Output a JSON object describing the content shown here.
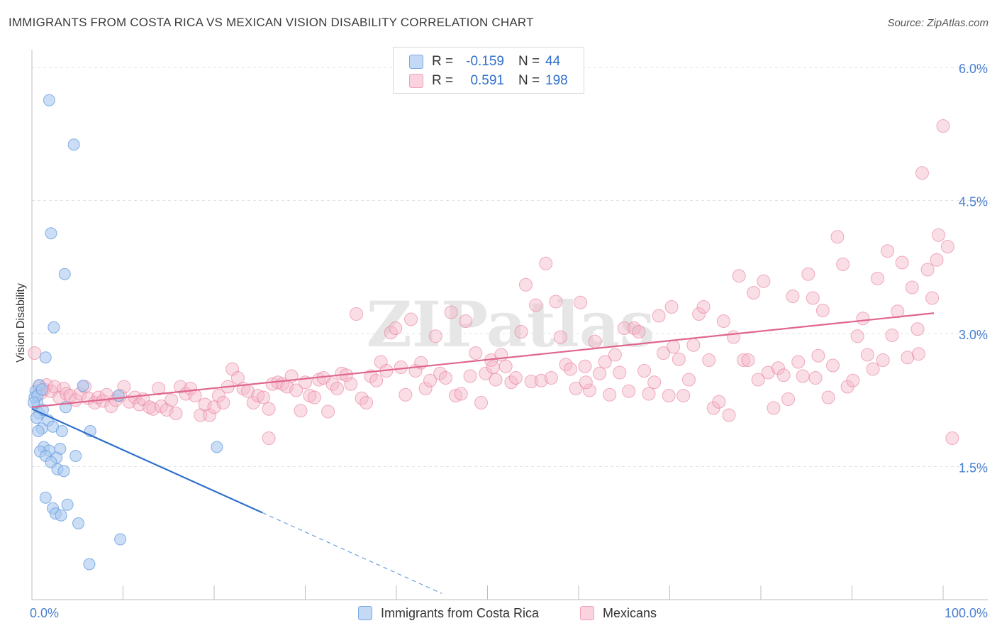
{
  "title": "IMMIGRANTS FROM COSTA RICA VS MEXICAN VISION DISABILITY CORRELATION CHART",
  "source": "Source: ZipAtlas.com",
  "watermark": "ZIPatlas",
  "legend": {
    "rows": [
      {
        "r_label": "R =",
        "r_value": "-0.159",
        "n_label": "N =",
        "n_value": "44",
        "color": "#a8c8f0"
      },
      {
        "r_label": "R =",
        "r_value": "0.591",
        "n_label": "N =",
        "n_value": "198",
        "color": "#f5b5c8"
      }
    ]
  },
  "bottom_legend": {
    "series1": "Immigrants from Costa Rica",
    "series2": "Mexicans"
  },
  "chart_data": {
    "type": "scatter",
    "title": "IMMIGRANTS FROM COSTA RICA VS MEXICAN VISION DISABILITY CORRELATION CHART",
    "xlabel": "",
    "ylabel": "Vision Disability",
    "xlim": [
      0,
      100
    ],
    "ylim": [
      0,
      6.2
    ],
    "x_tick_labels": [
      "0.0%",
      "100.0%"
    ],
    "y_ticks": [
      {
        "value": 1.5,
        "label": "1.5%"
      },
      {
        "value": 3.0,
        "label": "3.0%"
      },
      {
        "value": 4.5,
        "label": "4.5%"
      },
      {
        "value": 6.0,
        "label": "6.0%"
      }
    ],
    "series": [
      {
        "name": "Immigrants from Costa Rica",
        "color": "#6a9fe0",
        "fill": "#a8c8f0",
        "trend": {
          "x0": 0,
          "y0": 2.15,
          "x1": 25.3,
          "y1": 0.98,
          "dash_to_x": 45.0
        },
        "points": [
          [
            1.9,
            5.63
          ],
          [
            4.6,
            5.13
          ],
          [
            2.1,
            4.13
          ],
          [
            3.6,
            3.67
          ],
          [
            2.4,
            3.07
          ],
          [
            1.5,
            2.73
          ],
          [
            5.6,
            2.41
          ],
          [
            0.4,
            2.35
          ],
          [
            0.6,
            2.22
          ],
          [
            0.8,
            2.1
          ],
          [
            1.2,
            2.14
          ],
          [
            3.7,
            2.17
          ],
          [
            0.5,
            2.05
          ],
          [
            1.1,
            1.93
          ],
          [
            1.8,
            2.02
          ],
          [
            2.3,
            1.95
          ],
          [
            3.3,
            1.9
          ],
          [
            6.4,
            1.9
          ],
          [
            0.7,
            1.9
          ],
          [
            1.3,
            1.72
          ],
          [
            1.9,
            1.68
          ],
          [
            3.1,
            1.7
          ],
          [
            0.9,
            1.67
          ],
          [
            1.5,
            1.62
          ],
          [
            2.7,
            1.6
          ],
          [
            4.8,
            1.62
          ],
          [
            2.1,
            1.55
          ],
          [
            2.8,
            1.47
          ],
          [
            3.5,
            1.45
          ],
          [
            1.5,
            1.15
          ],
          [
            2.3,
            1.03
          ],
          [
            3.9,
            1.07
          ],
          [
            2.6,
            0.97
          ],
          [
            3.2,
            0.95
          ],
          [
            5.1,
            0.86
          ],
          [
            9.7,
            0.68
          ],
          [
            6.3,
            0.4
          ],
          [
            0.3,
            2.28
          ],
          [
            0.6,
            2.3
          ],
          [
            0.2,
            2.22
          ],
          [
            9.5,
            2.3
          ],
          [
            20.3,
            1.72
          ],
          [
            0.8,
            2.42
          ],
          [
            1.1,
            2.37
          ]
        ]
      },
      {
        "name": "Mexicans",
        "color": "#e8799a",
        "fill": "#f5b5c8",
        "trend": {
          "x0": 0,
          "y0": 2.17,
          "x1": 99.0,
          "y1": 3.23
        },
        "points": [
          [
            0.3,
            2.78
          ],
          [
            0.8,
            2.4
          ],
          [
            1.0,
            2.33
          ],
          [
            1.3,
            2.37
          ],
          [
            1.6,
            2.42
          ],
          [
            2.1,
            2.35
          ],
          [
            2.5,
            2.4
          ],
          [
            3.0,
            2.28
          ],
          [
            3.5,
            2.38
          ],
          [
            3.8,
            2.32
          ],
          [
            4.2,
            2.3
          ],
          [
            4.8,
            2.25
          ],
          [
            5.3,
            2.32
          ],
          [
            5.8,
            2.4
          ],
          [
            6.2,
            2.27
          ],
          [
            6.9,
            2.22
          ],
          [
            7.3,
            2.28
          ],
          [
            7.8,
            2.24
          ],
          [
            8.2,
            2.31
          ],
          [
            8.7,
            2.18
          ],
          [
            9.2,
            2.25
          ],
          [
            9.7,
            2.3
          ],
          [
            10.1,
            2.4
          ],
          [
            10.7,
            2.23
          ],
          [
            11.3,
            2.28
          ],
          [
            11.8,
            2.2
          ],
          [
            12.2,
            2.26
          ],
          [
            12.9,
            2.17
          ],
          [
            13.3,
            2.15
          ],
          [
            13.9,
            2.38
          ],
          [
            14.2,
            2.18
          ],
          [
            14.8,
            2.14
          ],
          [
            15.3,
            2.25
          ],
          [
            15.8,
            2.1
          ],
          [
            16.3,
            2.4
          ],
          [
            16.9,
            2.32
          ],
          [
            17.4,
            2.38
          ],
          [
            17.9,
            2.3
          ],
          [
            18.5,
            2.08
          ],
          [
            19.0,
            2.2
          ],
          [
            19.5,
            2.08
          ],
          [
            20.0,
            2.17
          ],
          [
            20.5,
            2.3
          ],
          [
            21.0,
            2.22
          ],
          [
            21.5,
            2.4
          ],
          [
            22.0,
            2.6
          ],
          [
            22.6,
            2.5
          ],
          [
            23.2,
            2.38
          ],
          [
            23.7,
            2.35
          ],
          [
            24.3,
            2.22
          ],
          [
            24.8,
            2.3
          ],
          [
            25.4,
            2.28
          ],
          [
            26.0,
            2.15
          ],
          [
            26.4,
            2.43
          ],
          [
            27.0,
            2.45
          ],
          [
            27.5,
            2.43
          ],
          [
            28.0,
            2.4
          ],
          [
            28.5,
            2.52
          ],
          [
            29.0,
            2.36
          ],
          [
            29.5,
            2.13
          ],
          [
            30.0,
            2.45
          ],
          [
            30.5,
            2.3
          ],
          [
            31.0,
            2.28
          ],
          [
            31.5,
            2.48
          ],
          [
            32.0,
            2.5
          ],
          [
            32.5,
            2.12
          ],
          [
            33.0,
            2.43
          ],
          [
            33.5,
            2.38
          ],
          [
            34.0,
            2.55
          ],
          [
            34.5,
            2.53
          ],
          [
            35.0,
            2.43
          ],
          [
            35.6,
            3.22
          ],
          [
            36.2,
            2.27
          ],
          [
            36.7,
            2.22
          ],
          [
            37.2,
            2.52
          ],
          [
            37.8,
            2.47
          ],
          [
            38.3,
            2.68
          ],
          [
            38.9,
            2.58
          ],
          [
            39.4,
            3.01
          ],
          [
            39.9,
            3.06
          ],
          [
            40.5,
            2.62
          ],
          [
            41.0,
            2.31
          ],
          [
            41.6,
            3.16
          ],
          [
            42.1,
            2.58
          ],
          [
            42.7,
            2.67
          ],
          [
            43.2,
            2.38
          ],
          [
            43.7,
            2.47
          ],
          [
            44.3,
            2.97
          ],
          [
            44.8,
            2.55
          ],
          [
            45.4,
            2.5
          ],
          [
            46.0,
            3.24
          ],
          [
            46.5,
            2.3
          ],
          [
            47.1,
            2.32
          ],
          [
            47.6,
            3.14
          ],
          [
            48.1,
            2.52
          ],
          [
            48.7,
            2.78
          ],
          [
            49.3,
            2.22
          ],
          [
            49.8,
            2.55
          ],
          [
            50.4,
            2.7
          ],
          [
            50.9,
            2.48
          ],
          [
            51.5,
            2.76
          ],
          [
            52.0,
            2.63
          ],
          [
            52.6,
            2.45
          ],
          [
            53.1,
            2.5
          ],
          [
            53.7,
            3.02
          ],
          [
            54.2,
            3.55
          ],
          [
            54.8,
            2.46
          ],
          [
            55.3,
            3.32
          ],
          [
            55.9,
            2.47
          ],
          [
            56.4,
            3.79
          ],
          [
            57.0,
            2.5
          ],
          [
            57.5,
            3.36
          ],
          [
            58.0,
            2.96
          ],
          [
            58.6,
            2.65
          ],
          [
            59.1,
            2.6
          ],
          [
            59.7,
            2.38
          ],
          [
            60.2,
            3.35
          ],
          [
            60.7,
            2.63
          ],
          [
            61.2,
            2.36
          ],
          [
            61.8,
            2.91
          ],
          [
            62.3,
            2.55
          ],
          [
            62.9,
            2.68
          ],
          [
            63.4,
            2.31
          ],
          [
            64.0,
            2.76
          ],
          [
            64.5,
            2.56
          ],
          [
            65.0,
            3.06
          ],
          [
            65.5,
            2.35
          ],
          [
            66.1,
            3.06
          ],
          [
            66.6,
            3.02
          ],
          [
            67.2,
            2.58
          ],
          [
            67.7,
            2.32
          ],
          [
            68.3,
            2.45
          ],
          [
            68.8,
            3.2
          ],
          [
            69.3,
            2.78
          ],
          [
            69.9,
            2.3
          ],
          [
            70.4,
            2.85
          ],
          [
            71.0,
            2.71
          ],
          [
            71.5,
            2.3
          ],
          [
            72.1,
            2.48
          ],
          [
            72.6,
            2.87
          ],
          [
            73.2,
            3.22
          ],
          [
            73.7,
            3.3
          ],
          [
            74.3,
            2.7
          ],
          [
            74.8,
            2.16
          ],
          [
            75.4,
            2.23
          ],
          [
            75.9,
            3.14
          ],
          [
            76.5,
            2.08
          ],
          [
            77.0,
            2.96
          ],
          [
            77.6,
            3.65
          ],
          [
            78.1,
            2.7
          ],
          [
            78.6,
            2.7
          ],
          [
            79.2,
            3.46
          ],
          [
            79.7,
            2.48
          ],
          [
            80.3,
            3.59
          ],
          [
            80.8,
            2.56
          ],
          [
            81.4,
            2.16
          ],
          [
            81.9,
            2.61
          ],
          [
            82.5,
            2.53
          ],
          [
            83.0,
            2.26
          ],
          [
            83.5,
            3.42
          ],
          [
            84.1,
            2.68
          ],
          [
            84.6,
            2.52
          ],
          [
            85.2,
            3.67
          ],
          [
            85.7,
            3.4
          ],
          [
            86.3,
            2.75
          ],
          [
            86.8,
            3.26
          ],
          [
            87.4,
            2.28
          ],
          [
            87.9,
            2.64
          ],
          [
            88.4,
            4.09
          ],
          [
            89.0,
            3.78
          ],
          [
            89.5,
            2.4
          ],
          [
            90.1,
            2.47
          ],
          [
            90.6,
            2.97
          ],
          [
            91.2,
            3.17
          ],
          [
            91.7,
            2.76
          ],
          [
            92.3,
            2.6
          ],
          [
            92.8,
            3.62
          ],
          [
            93.4,
            2.7
          ],
          [
            93.9,
            3.93
          ],
          [
            94.4,
            2.98
          ],
          [
            95.0,
            3.25
          ],
          [
            95.5,
            3.8
          ],
          [
            96.1,
            2.73
          ],
          [
            96.6,
            3.52
          ],
          [
            97.2,
            3.05
          ],
          [
            97.7,
            4.81
          ],
          [
            98.3,
            3.72
          ],
          [
            98.8,
            3.4
          ],
          [
            99.3,
            3.83
          ],
          [
            99.5,
            4.11
          ],
          [
            100.0,
            5.34
          ],
          [
            100.5,
            3.98
          ],
          [
            101.0,
            1.82
          ],
          [
            97.3,
            2.77
          ],
          [
            26.0,
            1.82
          ],
          [
            50.6,
            2.62
          ],
          [
            60.8,
            2.45
          ],
          [
            70.2,
            3.3
          ],
          [
            86.0,
            2.5
          ]
        ]
      }
    ]
  }
}
